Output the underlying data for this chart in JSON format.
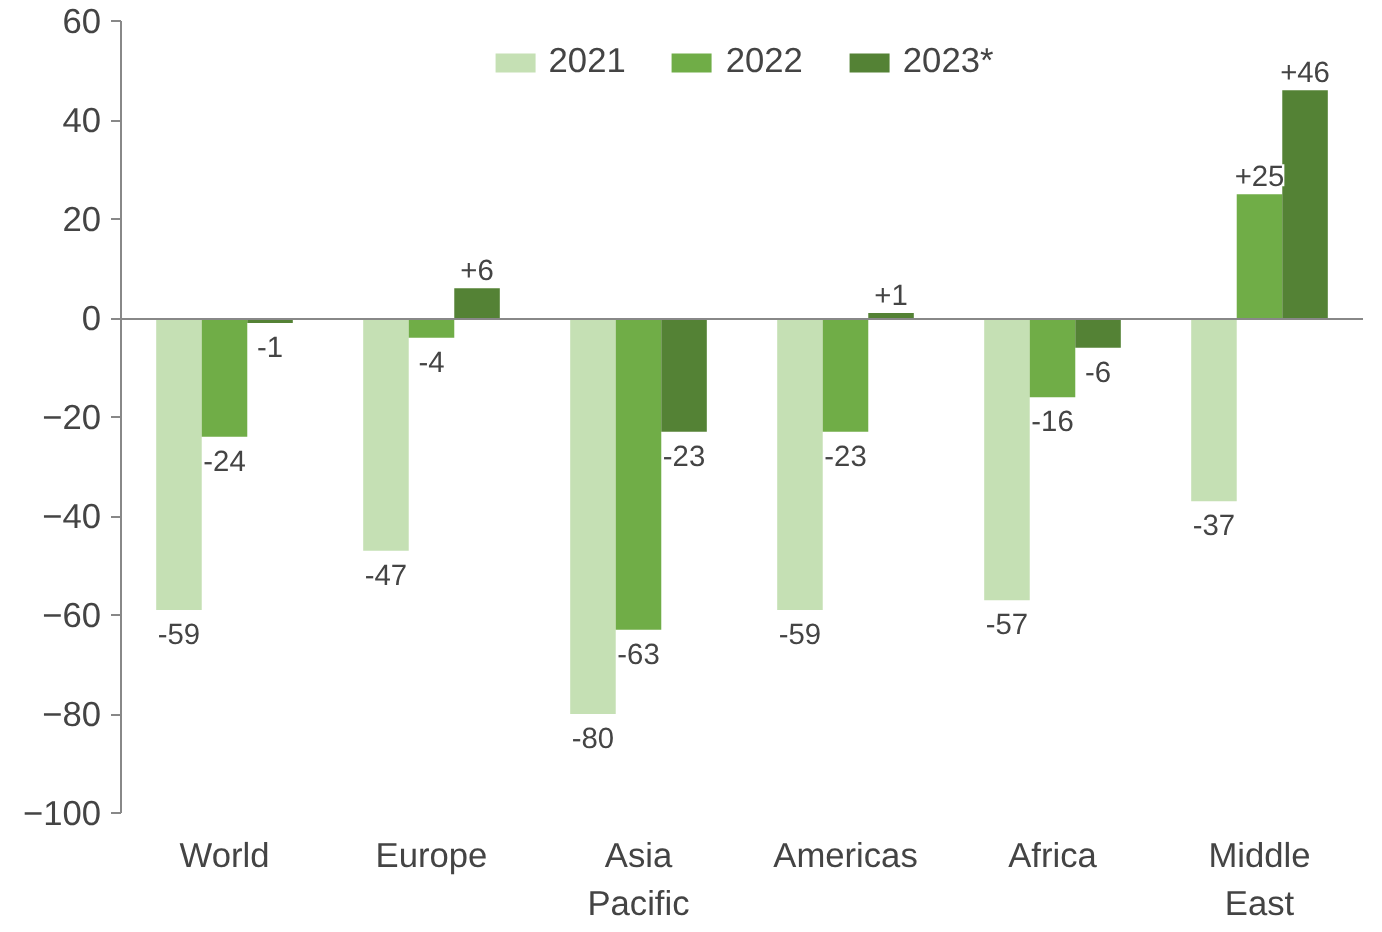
{
  "chart_data": {
    "type": "bar",
    "categories": [
      "World",
      "Europe",
      "Asia\nPacific",
      "Americas",
      "Africa",
      "Middle\nEast"
    ],
    "series": [
      {
        "name": "2021",
        "color": "#c5e0b4",
        "values": [
          -59,
          -47,
          -80,
          -59,
          -57,
          -37
        ],
        "value_labels": [
          "-59",
          "-47",
          "-80",
          "-59",
          "-57",
          "-37"
        ]
      },
      {
        "name": "2022",
        "color": "#70ad47",
        "values": [
          -24,
          -4,
          -63,
          -23,
          -16,
          25
        ],
        "value_labels": [
          "-24",
          "-4",
          "-63",
          "-23",
          "-16",
          "+25"
        ]
      },
      {
        "name": "2023*",
        "color": "#548235",
        "values": [
          -1,
          6,
          -23,
          1,
          -6,
          46
        ],
        "value_labels": [
          "-1",
          "+6",
          "-23",
          "+1",
          "-6",
          "+46"
        ]
      }
    ],
    "ylim": [
      -100,
      60
    ],
    "yticks": [
      -100,
      -80,
      -60,
      -40,
      -20,
      0,
      20,
      40,
      60
    ],
    "legend": "top"
  }
}
